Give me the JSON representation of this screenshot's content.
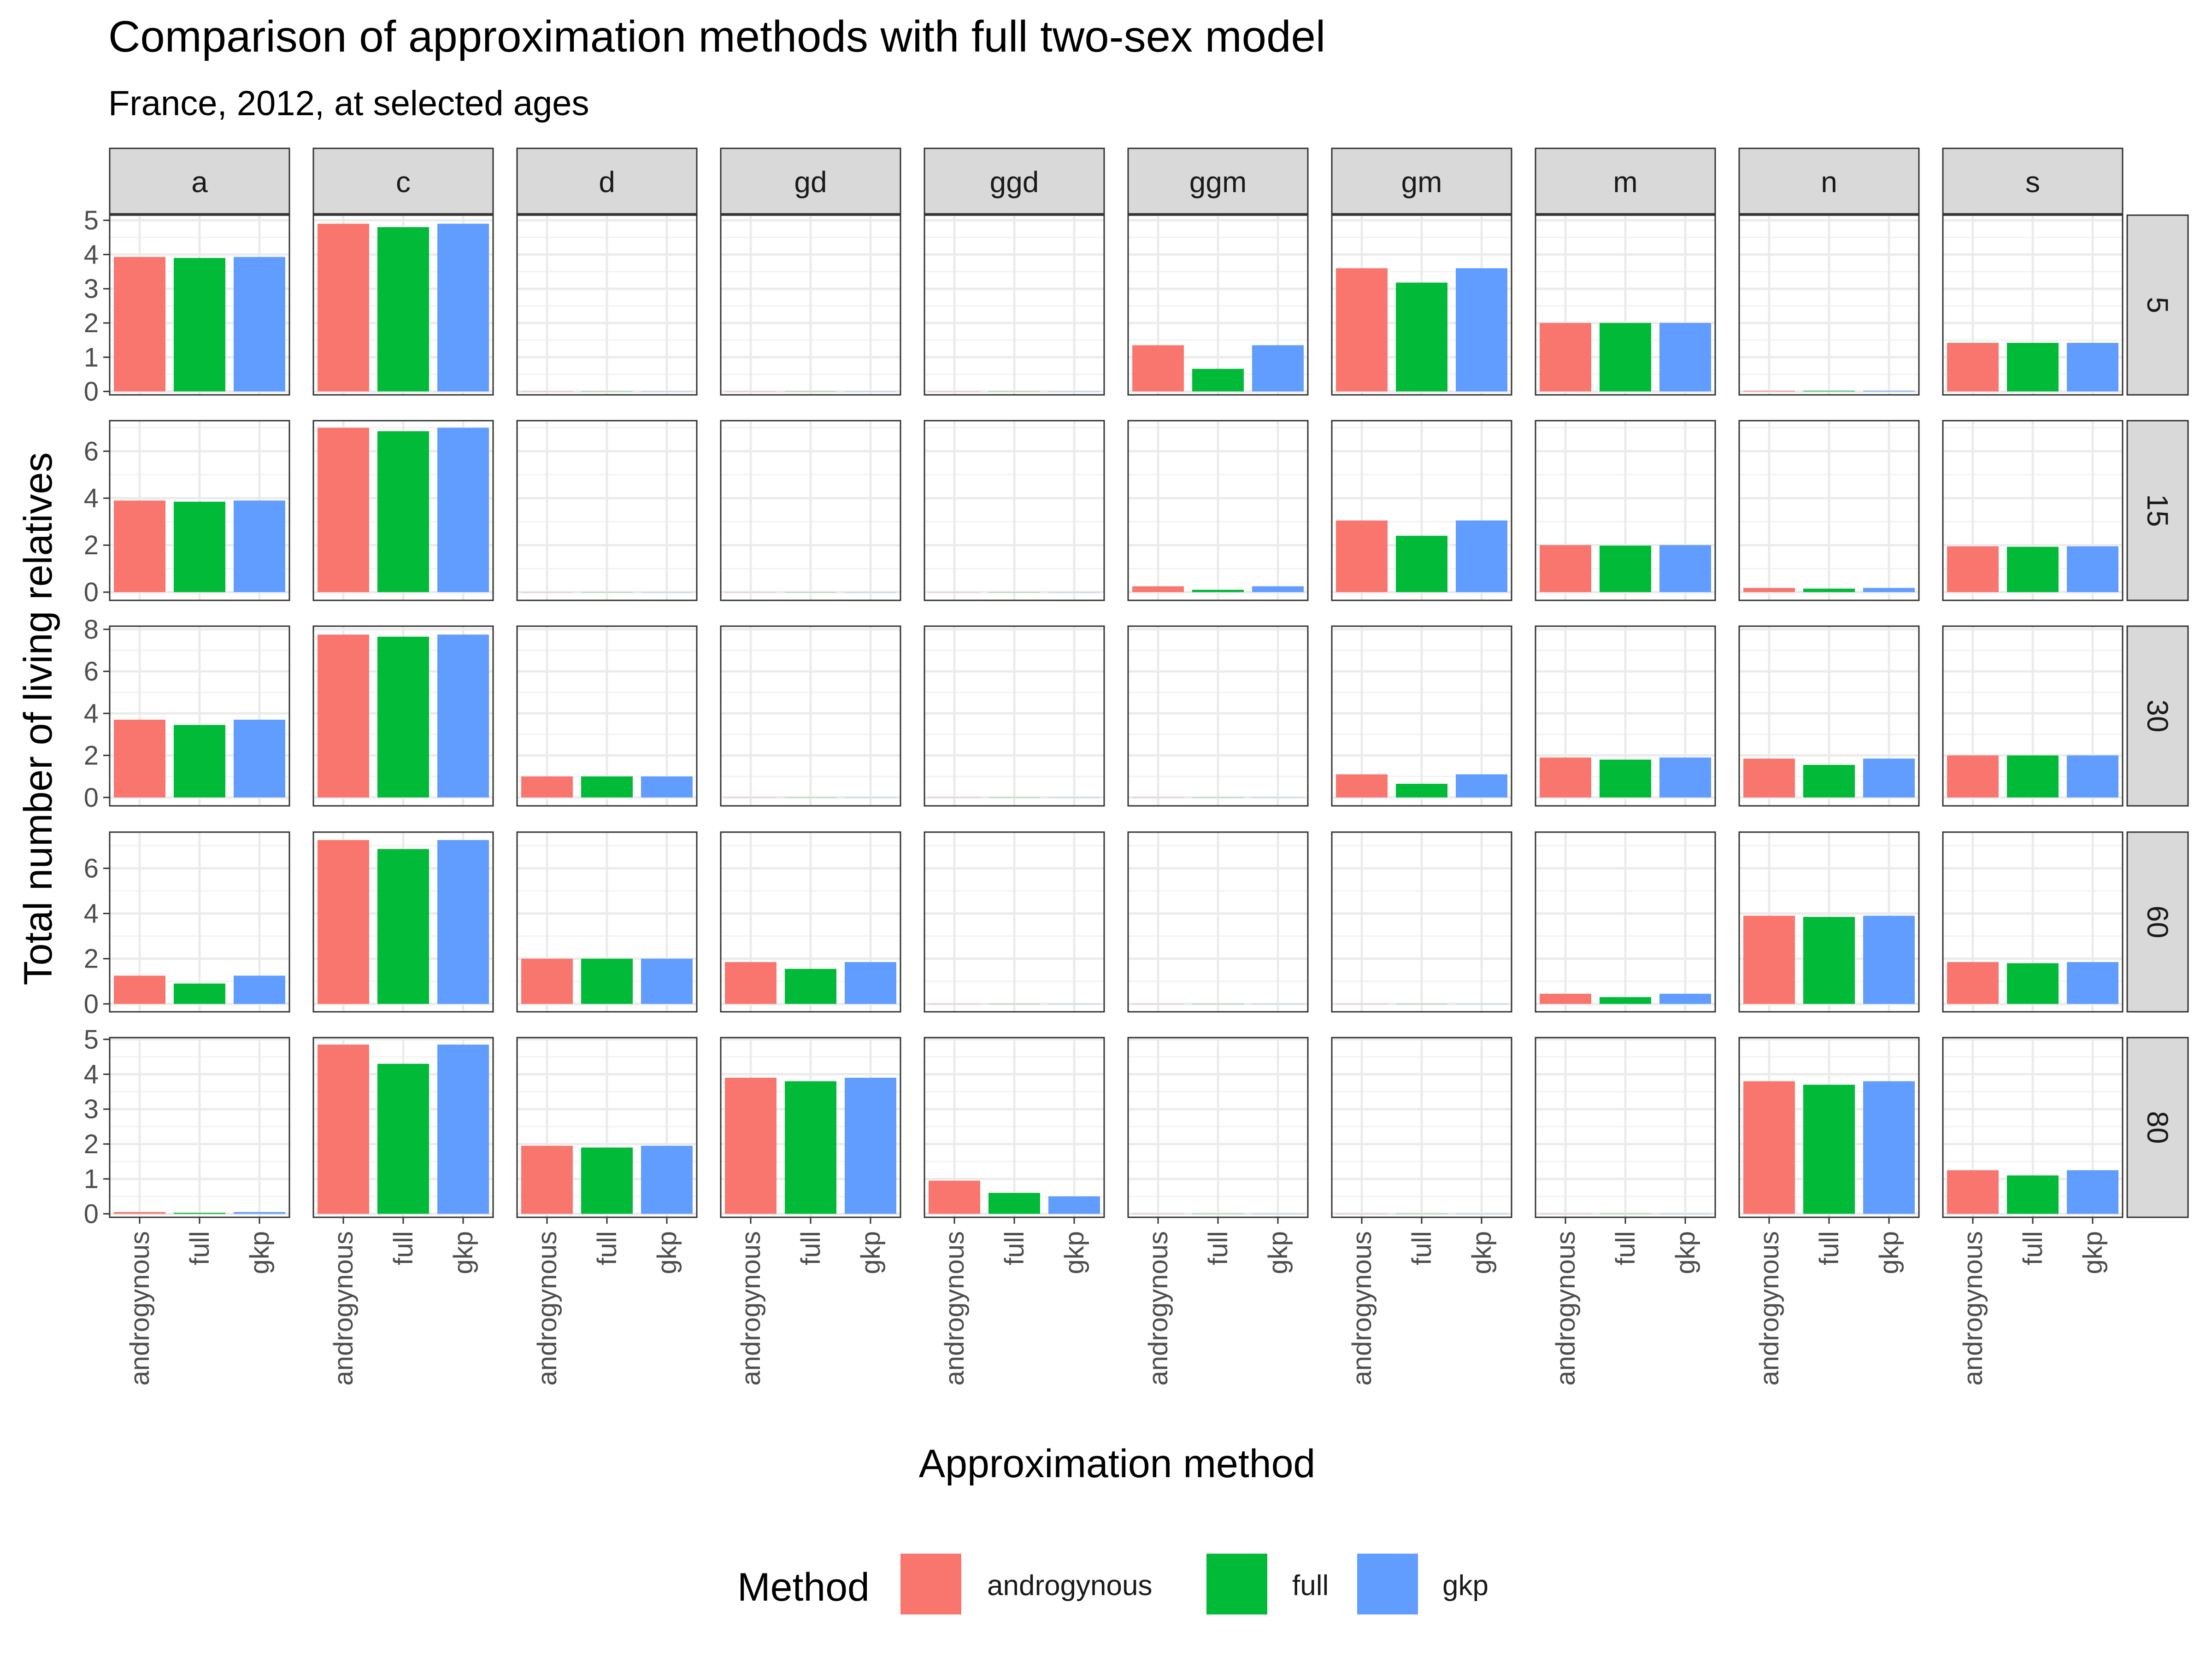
{
  "chart_data": {
    "type": "bar",
    "title": "Comparison of approximation methods with full two-sex model",
    "subtitle": "France, 2012, at selected ages",
    "xlabel": "Approximation method",
    "ylabel": "Total number of living relatives",
    "legend": {
      "title": "Method",
      "position": "bottom",
      "entries": [
        "androgynous",
        "full",
        "gkp"
      ]
    },
    "colors": {
      "androgynous": "#F8766D",
      "full": "#00BA38",
      "gkp": "#619CFF"
    },
    "grid": true,
    "facet_columns": [
      "a",
      "c",
      "d",
      "gd",
      "ggd",
      "ggm",
      "gm",
      "m",
      "n",
      "s"
    ],
    "facet_rows": [
      "5",
      "15",
      "30",
      "60",
      "80"
    ],
    "categories": [
      "androgynous",
      "full",
      "gkp"
    ],
    "rows": [
      {
        "age": "5",
        "ylim": [
          -0.1,
          5.15
        ],
        "yticks": [
          0,
          1,
          2,
          3,
          4,
          5
        ],
        "values": {
          "a": [
            3.93,
            3.9,
            3.93
          ],
          "c": [
            4.9,
            4.8,
            4.9
          ],
          "d": [
            0,
            0,
            0
          ],
          "gd": [
            0,
            0,
            0
          ],
          "ggd": [
            0,
            0,
            0
          ],
          "ggm": [
            1.35,
            0.66,
            1.35
          ],
          "gm": [
            3.6,
            3.18,
            3.6
          ],
          "m": [
            2,
            2,
            2
          ],
          "n": [
            0.02,
            0.02,
            0.02
          ],
          "s": [
            1.42,
            1.42,
            1.42
          ]
        }
      },
      {
        "age": "15",
        "ylim": [
          -0.35,
          7.3
        ],
        "yticks": [
          0,
          2,
          4,
          6
        ],
        "values": {
          "a": [
            3.9,
            3.85,
            3.9
          ],
          "c": [
            7.0,
            6.85,
            7.0
          ],
          "d": [
            0,
            0,
            0
          ],
          "gd": [
            0,
            0,
            0
          ],
          "ggd": [
            0,
            0,
            0
          ],
          "ggm": [
            0.25,
            0.1,
            0.25
          ],
          "gm": [
            3.05,
            2.4,
            3.05
          ],
          "m": [
            2,
            1.98,
            2
          ],
          "n": [
            0.18,
            0.15,
            0.18
          ],
          "s": [
            1.95,
            1.93,
            1.95
          ]
        }
      },
      {
        "age": "30",
        "ylim": [
          -0.4,
          8.15
        ],
        "yticks": [
          0,
          2,
          4,
          6,
          8
        ],
        "values": {
          "a": [
            3.7,
            3.45,
            3.7
          ],
          "c": [
            7.75,
            7.65,
            7.75
          ],
          "d": [
            1.0,
            1.0,
            1.0
          ],
          "gd": [
            0,
            0,
            0
          ],
          "ggd": [
            0,
            0,
            0
          ],
          "ggm": [
            0,
            0,
            0
          ],
          "gm": [
            1.1,
            0.65,
            1.1
          ],
          "m": [
            1.9,
            1.8,
            1.9
          ],
          "n": [
            1.85,
            1.55,
            1.85
          ],
          "s": [
            2.0,
            2.0,
            2.0
          ]
        }
      },
      {
        "age": "60",
        "ylim": [
          -0.35,
          7.6
        ],
        "yticks": [
          0,
          2,
          4,
          6
        ],
        "values": {
          "a": [
            1.25,
            0.9,
            1.25
          ],
          "c": [
            7.25,
            6.85,
            7.25
          ],
          "d": [
            2.0,
            2.0,
            2.0
          ],
          "gd": [
            1.85,
            1.55,
            1.85
          ],
          "ggd": [
            0,
            0,
            0
          ],
          "ggm": [
            0,
            0,
            0
          ],
          "gm": [
            0,
            0,
            0
          ],
          "m": [
            0.45,
            0.3,
            0.45
          ],
          "n": [
            3.9,
            3.85,
            3.9
          ],
          "s": [
            1.85,
            1.8,
            1.85
          ]
        }
      },
      {
        "age": "80",
        "ylim": [
          -0.1,
          5.05
        ],
        "yticks": [
          0,
          1,
          2,
          3,
          4,
          5
        ],
        "values": {
          "a": [
            0.05,
            0.03,
            0.05
          ],
          "c": [
            4.85,
            4.3,
            4.85
          ],
          "d": [
            1.95,
            1.9,
            1.95
          ],
          "gd": [
            3.9,
            3.8,
            3.9
          ],
          "ggd": [
            0.95,
            0.6,
            0.5
          ],
          "ggm": [
            0,
            0,
            0
          ],
          "gm": [
            0,
            0,
            0
          ],
          "m": [
            0,
            0,
            0
          ],
          "n": [
            3.8,
            3.7,
            3.8
          ],
          "s": [
            1.25,
            1.1,
            1.25
          ]
        }
      }
    ]
  }
}
